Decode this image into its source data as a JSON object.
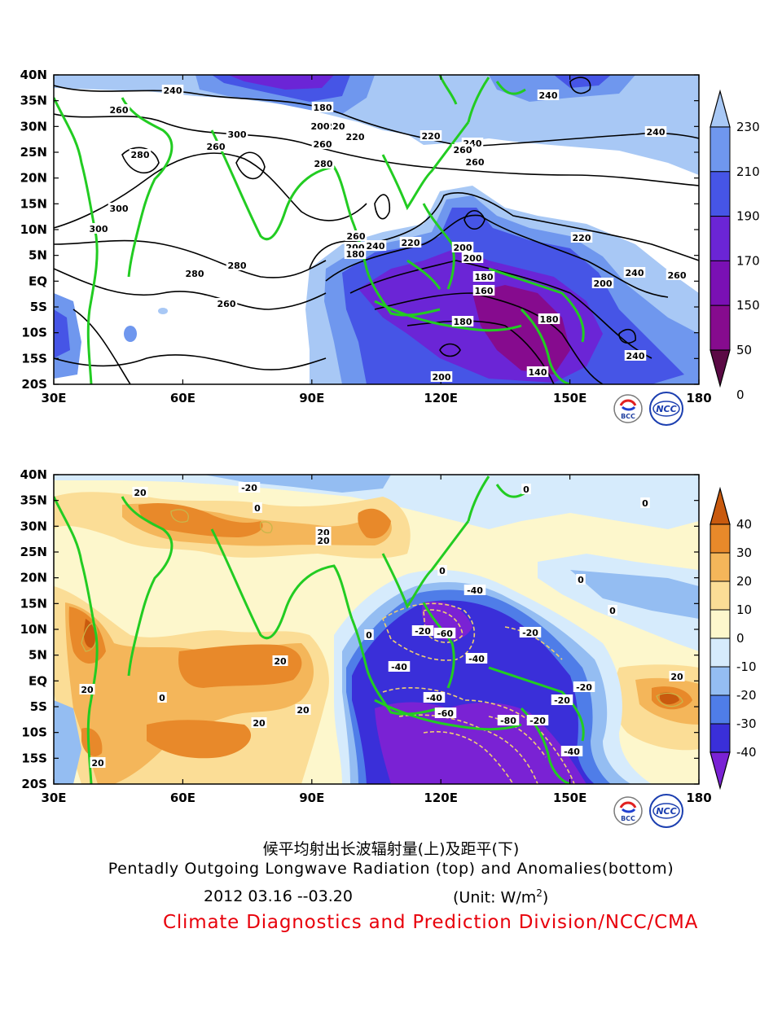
{
  "title_cn": "候平均射出长波辐射量(上)及距平(下)",
  "title_en": "Pentadly Outgoing Longwave Radiation (top) and Anomalies(bottom)",
  "date_range": "2012  03.16 --03.20",
  "unit_prefix": "(Unit: W/m",
  "unit_sup": "2",
  "unit_suffix": ")",
  "organization": "Climate Diagnostics and Prediction Division/NCC/CMA",
  "lat_labels": [
    "40N",
    "35N",
    "30N",
    "25N",
    "20N",
    "15N",
    "10N",
    "5N",
    "EQ",
    "5S",
    "10S",
    "15S",
    "20S"
  ],
  "lon_labels": [
    "30E",
    "60E",
    "90E",
    "120E",
    "150E",
    "180"
  ],
  "logos": [
    "BCC",
    "NCC"
  ],
  "top_colorbar": {
    "labels": [
      "230",
      "210",
      "190",
      "170",
      "150",
      "50",
      "0"
    ],
    "colors": [
      "#a8c8f5",
      "#6f97ee",
      "#4655e6",
      "#6b25d6",
      "#7a10b4",
      "#860b8e",
      "#5b0a45"
    ]
  },
  "bottom_colorbar": {
    "labels": [
      "40",
      "30",
      "20",
      "10",
      "0",
      "-10",
      "-20",
      "-30",
      "-40"
    ],
    "colors": [
      "#c95a0e",
      "#e8892a",
      "#f4b65a",
      "#fbdd96",
      "#fdf7cc",
      "#d6ebfc",
      "#94bdf2",
      "#4f7de8",
      "#3a2fd9",
      "#7a22d4"
    ]
  },
  "top_map": {
    "contour_labels": [
      "240",
      "260",
      "180",
      "220",
      "200",
      "220",
      "240",
      "300",
      "260",
      "280",
      "220",
      "260",
      "240",
      "240",
      "260",
      "280",
      "260",
      "300",
      "300",
      "200",
      "240",
      "260",
      "200",
      "220",
      "220",
      "180",
      "200",
      "280",
      "280",
      "180",
      "160",
      "240",
      "260",
      "200",
      "260",
      "180",
      "180",
      "240",
      "200",
      "140"
    ]
  },
  "bottom_map": {
    "contour_labels": [
      "20",
      "-20",
      "0",
      "0",
      "20",
      "20",
      "0",
      "0",
      "0",
      "-40",
      "-20",
      "-60",
      "-20",
      "0",
      "0",
      "-40",
      "-40",
      "20",
      "20",
      "0",
      "-20",
      "20",
      "-60",
      "-80",
      "-20",
      "-40",
      "-20",
      "-40",
      "20",
      "20",
      "20"
    ]
  }
}
